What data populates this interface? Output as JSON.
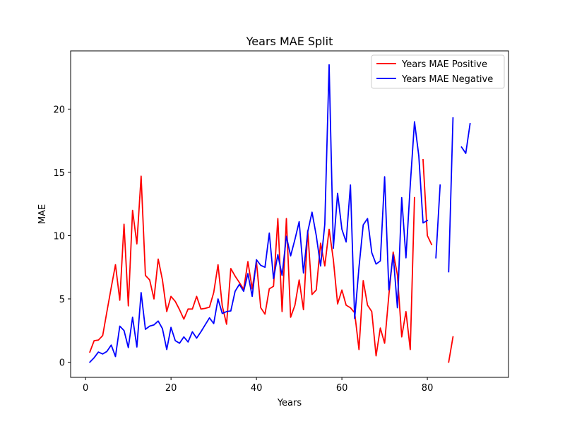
{
  "chart_data": {
    "type": "line",
    "title": "Years MAE Split",
    "xlabel": "Years",
    "ylabel": "MAE",
    "xlim": [
      -3.5,
      99
    ],
    "ylim": [
      -1.2,
      24.6
    ],
    "xticks": [
      0,
      20,
      40,
      60,
      80
    ],
    "yticks": [
      0,
      5,
      10,
      15,
      20
    ],
    "grid": false,
    "legend_position": "top-right",
    "series": [
      {
        "name": "Years MAE Positive",
        "color": "#ff0000",
        "points": [
          [
            1,
            0.8
          ],
          [
            2,
            1.7
          ],
          [
            3,
            1.75
          ],
          [
            4,
            2.1
          ],
          [
            5,
            4.0
          ],
          [
            6,
            5.9
          ],
          [
            7,
            7.7
          ],
          [
            8,
            4.9
          ],
          [
            9,
            10.9
          ],
          [
            10,
            4.45
          ],
          [
            11,
            12.0
          ],
          [
            12,
            9.35
          ],
          [
            13,
            14.7
          ],
          [
            14,
            6.85
          ],
          [
            15,
            6.5
          ],
          [
            16,
            5.0
          ],
          [
            17,
            8.15
          ],
          [
            18,
            6.5
          ],
          [
            19,
            4.0
          ],
          [
            20,
            5.2
          ],
          [
            21,
            4.8
          ],
          [
            22,
            4.15
          ],
          [
            23,
            3.4
          ],
          [
            24,
            4.2
          ],
          [
            25,
            4.2
          ],
          [
            26,
            5.2
          ],
          [
            27,
            4.2
          ],
          [
            28,
            4.25
          ],
          [
            29,
            4.35
          ],
          [
            30,
            5.5
          ],
          [
            31,
            7.7
          ],
          [
            32,
            4.45
          ],
          [
            33,
            3.0
          ],
          [
            34,
            7.4
          ],
          [
            35,
            6.8
          ],
          [
            36,
            6.3
          ],
          [
            37,
            5.75
          ],
          [
            38,
            7.95
          ],
          [
            39,
            5.8
          ],
          [
            40,
            7.95
          ],
          [
            41,
            4.3
          ],
          [
            42,
            3.8
          ],
          [
            43,
            5.8
          ],
          [
            44,
            6.0
          ],
          [
            45,
            11.35
          ],
          [
            46,
            4.0
          ],
          [
            47,
            11.35
          ],
          [
            48,
            3.55
          ],
          [
            49,
            4.5
          ],
          [
            50,
            6.5
          ],
          [
            51,
            4.15
          ],
          [
            52,
            10.4
          ],
          [
            53,
            5.35
          ],
          [
            54,
            5.7
          ],
          [
            55,
            9.4
          ],
          [
            56,
            7.6
          ],
          [
            57,
            10.5
          ],
          [
            58,
            8.1
          ],
          [
            59,
            4.6
          ],
          [
            60,
            5.7
          ],
          [
            61,
            4.5
          ],
          [
            62,
            4.3
          ],
          [
            63,
            3.9
          ],
          [
            64,
            1.0
          ],
          [
            65,
            6.45
          ],
          [
            66,
            4.5
          ],
          [
            67,
            4.0
          ],
          [
            68,
            0.5
          ],
          [
            69,
            2.7
          ],
          [
            70,
            1.5
          ],
          [
            71,
            5.3
          ],
          [
            72,
            8.7
          ],
          [
            73,
            6.9
          ],
          [
            74,
            2.0
          ],
          [
            75,
            4.0
          ],
          [
            76,
            1.0
          ],
          [
            77,
            13.0
          ],
          null,
          [
            79,
            16.0
          ],
          [
            80,
            10.0
          ],
          [
            81,
            9.3
          ],
          null,
          null,
          null,
          [
            85,
            0.0
          ],
          [
            86,
            2.0
          ]
        ]
      },
      {
        "name": "Years MAE Negative",
        "color": "#0000ff",
        "points": [
          [
            1,
            0.0
          ],
          [
            2,
            0.35
          ],
          [
            3,
            0.8
          ],
          [
            4,
            0.65
          ],
          [
            5,
            0.85
          ],
          [
            6,
            1.35
          ],
          [
            7,
            0.45
          ],
          [
            8,
            2.85
          ],
          [
            9,
            2.5
          ],
          [
            10,
            1.15
          ],
          [
            11,
            3.55
          ],
          [
            12,
            1.2
          ],
          [
            13,
            5.5
          ],
          [
            14,
            2.6
          ],
          [
            15,
            2.85
          ],
          [
            16,
            2.95
          ],
          [
            17,
            3.25
          ],
          [
            18,
            2.65
          ],
          [
            19,
            1.0
          ],
          [
            20,
            2.75
          ],
          [
            21,
            1.7
          ],
          [
            22,
            1.5
          ],
          [
            23,
            2.0
          ],
          [
            24,
            1.6
          ],
          [
            25,
            2.4
          ],
          [
            26,
            1.9
          ],
          [
            27,
            2.4
          ],
          [
            28,
            2.95
          ],
          [
            29,
            3.5
          ],
          [
            30,
            3.05
          ],
          [
            31,
            5.0
          ],
          [
            32,
            3.85
          ],
          [
            33,
            4.0
          ],
          [
            34,
            4.05
          ],
          [
            35,
            5.6
          ],
          [
            36,
            6.15
          ],
          [
            37,
            5.6
          ],
          [
            38,
            7.0
          ],
          [
            39,
            5.2
          ],
          [
            40,
            8.1
          ],
          [
            41,
            7.65
          ],
          [
            42,
            7.5
          ],
          [
            43,
            10.2
          ],
          [
            44,
            6.6
          ],
          [
            45,
            8.5
          ],
          [
            46,
            6.85
          ],
          [
            47,
            9.95
          ],
          [
            48,
            8.4
          ],
          [
            49,
            9.7
          ],
          [
            50,
            11.1
          ],
          [
            51,
            7.05
          ],
          [
            52,
            10.3
          ],
          [
            53,
            11.85
          ],
          [
            54,
            10.0
          ],
          [
            55,
            7.6
          ],
          [
            56,
            10.9
          ],
          [
            57,
            23.5
          ],
          [
            58,
            9.0
          ],
          [
            59,
            13.35
          ],
          [
            60,
            10.5
          ],
          [
            61,
            9.5
          ],
          [
            62,
            14.0
          ],
          [
            63,
            3.45
          ],
          [
            64,
            7.5
          ],
          [
            65,
            10.85
          ],
          [
            66,
            11.35
          ],
          [
            67,
            8.65
          ],
          [
            68,
            7.75
          ],
          [
            69,
            8.0
          ],
          [
            70,
            14.65
          ],
          [
            71,
            5.7
          ],
          [
            72,
            8.5
          ],
          [
            73,
            4.3
          ],
          [
            74,
            13.0
          ],
          [
            75,
            8.25
          ],
          [
            76,
            14.0
          ],
          [
            77,
            19.0
          ],
          [
            78,
            16.3
          ],
          [
            79,
            11.0
          ],
          [
            80,
            11.2
          ],
          null,
          [
            82,
            8.25
          ],
          [
            83,
            14.0
          ],
          null,
          [
            85,
            7.15
          ],
          [
            86,
            19.3
          ],
          null,
          [
            88,
            17.0
          ],
          [
            89,
            16.5
          ],
          [
            90,
            18.85
          ]
        ]
      }
    ]
  }
}
